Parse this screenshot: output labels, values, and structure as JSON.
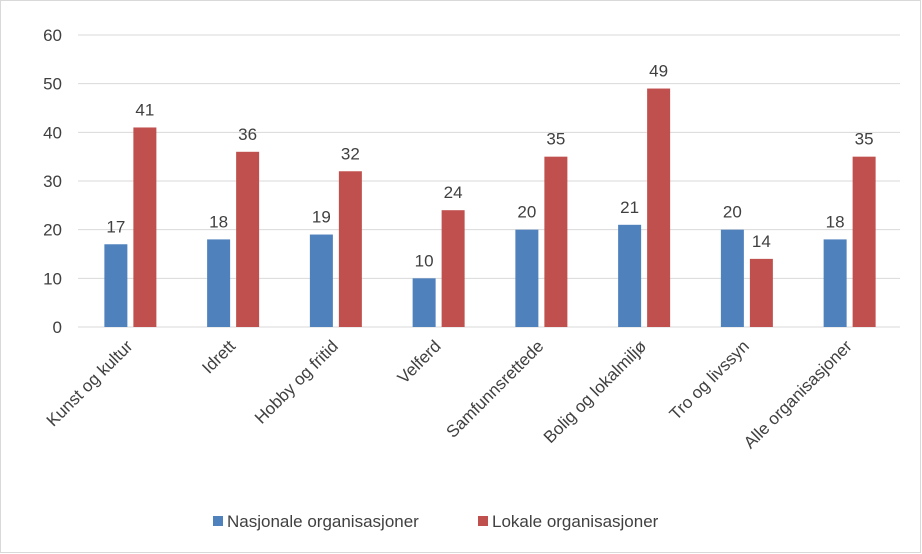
{
  "chart_data": {
    "type": "bar",
    "categories": [
      "Kunst og kultur",
      "Idrett",
      "Hobby og fritid",
      "Velferd",
      "Samfunnsrettede",
      "Bolig og lokalmiljø",
      "Tro og livssyn",
      "Alle organisasjoner"
    ],
    "series": [
      {
        "name": "Nasjonale organisasjoner",
        "color": "#4f81bd",
        "values": [
          17,
          18,
          19,
          10,
          20,
          21,
          20,
          18
        ]
      },
      {
        "name": "Lokale organisasjoner",
        "color": "#c0504d",
        "values": [
          41,
          36,
          32,
          24,
          35,
          49,
          14,
          35
        ]
      }
    ],
    "ylim": [
      0,
      60
    ],
    "yticks": [
      0,
      10,
      20,
      30,
      40,
      50,
      60
    ],
    "grid": true,
    "legend": "bottom"
  }
}
